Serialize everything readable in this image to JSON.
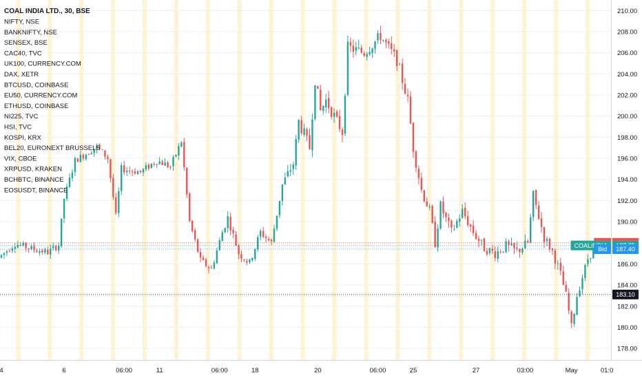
{
  "chart_data": {
    "type": "candlestick",
    "title": "COAL INDIA LTD., 30, BSE",
    "compare_symbols": [
      "NIFTY, NSE",
      "BANKNIFTY, NSE",
      "SENSEX, BSE",
      "CAC40, TVC",
      "UK100, CURRENCY.COM",
      "DAX, XETR",
      "BTCUSD, COINBASE",
      "EU50, CURRENCY.COM",
      "ETHUSD, COINBASE",
      "NI225, TVC",
      "HSI, TVC",
      "KOSPI, KRX",
      "BEL20, EURONEXT BRUSSELS",
      "VIX, CBOE",
      "XRPUSD, KRAKEN",
      "BCHBTC, BINANCE",
      "EOSUSDT, BINANCE"
    ],
    "ylim": [
      176.9,
      211.0
    ],
    "y_ticks": [
      "178.00",
      "180.00",
      "182.00",
      "184.00",
      "186.00",
      "188.00",
      "190.00",
      "192.00",
      "194.00",
      "196.00",
      "198.00",
      "200.00",
      "202.00",
      "204.00",
      "206.00",
      "208.00",
      "210.00"
    ],
    "x_ticks": [
      {
        "label": "4",
        "bar": 0
      },
      {
        "label": "6",
        "bar": 23
      },
      {
        "label": "06:00",
        "bar": 45
      },
      {
        "label": "11",
        "bar": 58
      },
      {
        "label": "06:00",
        "bar": 80
      },
      {
        "label": "18",
        "bar": 93
      },
      {
        "label": "20",
        "bar": 116
      },
      {
        "label": "06:00",
        "bar": 138
      },
      {
        "label": "25",
        "bar": 151
      },
      {
        "label": "27",
        "bar": 174
      },
      {
        "label": "03:00",
        "bar": 192
      },
      {
        "label": "May",
        "bar": 209
      },
      {
        "label": "01:0",
        "bar": 222
      }
    ],
    "grid": true,
    "session_shading": true,
    "up_color": "#26a69a",
    "down_color": "#ef5350",
    "bars_visible": 220,
    "path_knots": [
      [
        0,
        186.6
      ],
      [
        6,
        187.9
      ],
      [
        14,
        187.3
      ],
      [
        18,
        187.1
      ],
      [
        22,
        187.8
      ],
      [
        24,
        192.2
      ],
      [
        28,
        195.8
      ],
      [
        36,
        197.1
      ],
      [
        40,
        196.0
      ],
      [
        43,
        190.5
      ],
      [
        45,
        195.0
      ],
      [
        52,
        194.7
      ],
      [
        58,
        195.8
      ],
      [
        63,
        195.2
      ],
      [
        67,
        197.6
      ],
      [
        70,
        190.0
      ],
      [
        74,
        186.3
      ],
      [
        78,
        185.5
      ],
      [
        82,
        189.0
      ],
      [
        84,
        190.4
      ],
      [
        88,
        187.0
      ],
      [
        92,
        186.1
      ],
      [
        96,
        189.0
      ],
      [
        100,
        188.0
      ],
      [
        104,
        193.5
      ],
      [
        108,
        195.5
      ],
      [
        110,
        199.5
      ],
      [
        114,
        197.0
      ],
      [
        116,
        203.5
      ],
      [
        118,
        200.5
      ],
      [
        120,
        201.5
      ],
      [
        124,
        199.5
      ],
      [
        126,
        198.5
      ],
      [
        128,
        206.5
      ],
      [
        134,
        206.0
      ],
      [
        140,
        207.6
      ],
      [
        146,
        205.3
      ],
      [
        150,
        201.5
      ],
      [
        152,
        197.0
      ],
      [
        155,
        193.0
      ],
      [
        158,
        191.0
      ],
      [
        160,
        188.0
      ],
      [
        162,
        191.5
      ],
      [
        166,
        189.0
      ],
      [
        170,
        191.0
      ],
      [
        174,
        189.0
      ],
      [
        178,
        187.5
      ],
      [
        182,
        187.0
      ],
      [
        186,
        187.7
      ],
      [
        190,
        187.2
      ],
      [
        194,
        188.0
      ],
      [
        196,
        192.5
      ],
      [
        198,
        190.5
      ],
      [
        200,
        188.5
      ],
      [
        203,
        187.2
      ],
      [
        206,
        185.0
      ],
      [
        208,
        183.0
      ],
      [
        210,
        180.0
      ],
      [
        212,
        183.0
      ],
      [
        216,
        186.5
      ],
      [
        219,
        187.75
      ]
    ],
    "volatility": [
      [
        0,
        0.45
      ],
      [
        100,
        0.55
      ],
      [
        110,
        0.85
      ],
      [
        150,
        0.8
      ],
      [
        160,
        0.7
      ],
      [
        200,
        0.7
      ],
      [
        219,
        0.5
      ]
    ],
    "markers": [
      {
        "name": "Ask",
        "symbol": "Ask",
        "value": "188.00",
        "price": 188.0,
        "color": "#ef5350"
      },
      {
        "name": "Last",
        "symbol": "COALINDIA",
        "value": "187.75",
        "price": 187.75,
        "color": "#26a69a"
      },
      {
        "name": "Bid",
        "symbol": "Bid",
        "value": "187.40",
        "price": 187.4,
        "color": "#2196f3"
      },
      {
        "name": "Crosshair",
        "symbol": "",
        "value": "183.10",
        "price": 183.1,
        "color": "#131722"
      }
    ]
  }
}
